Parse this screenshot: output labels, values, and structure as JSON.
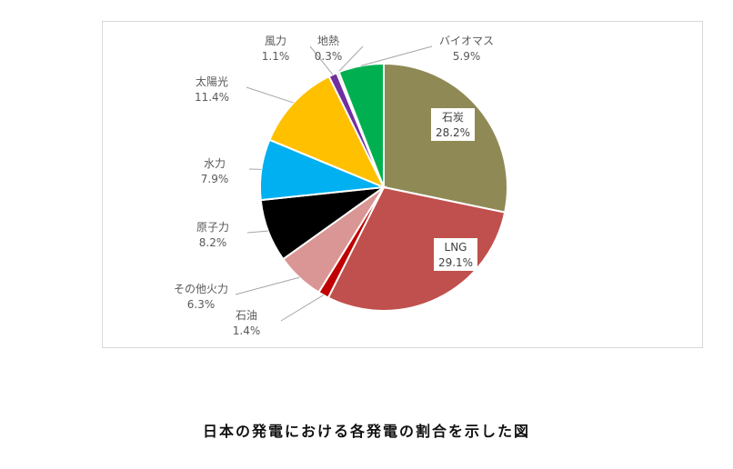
{
  "caption": "日本の発電における各発電の割合を示した図",
  "chart_data": {
    "type": "pie",
    "slices": [
      {
        "label": "石炭",
        "value": 28.2,
        "display": "28.2%",
        "color": "#8f8a55"
      },
      {
        "label": "LNG",
        "value": 29.1,
        "display": "29.1%",
        "color": "#c0504d"
      },
      {
        "label": "石油",
        "value": 1.4,
        "display": "1.4%",
        "color": "#c00000"
      },
      {
        "label": "その他火力",
        "value": 6.3,
        "display": "6.3%",
        "color": "#d99694"
      },
      {
        "label": "原子力",
        "value": 8.2,
        "display": "8.2%",
        "color": "#000000"
      },
      {
        "label": "水力",
        "value": 7.9,
        "display": "7.9%",
        "color": "#00b0f0"
      },
      {
        "label": "太陽光",
        "value": 11.4,
        "display": "11.4%",
        "color": "#ffc000"
      },
      {
        "label": "風力",
        "value": 1.1,
        "display": "1.1%",
        "color": "#7030a0"
      },
      {
        "label": "地熱",
        "value": 0.3,
        "display": "0.3%",
        "color": "#c4bd97"
      },
      {
        "label": "バイオマス",
        "value": 5.9,
        "display": "5.9%",
        "color": "#00b050"
      }
    ],
    "start": "12 o'clock",
    "direction": "clockwise"
  }
}
